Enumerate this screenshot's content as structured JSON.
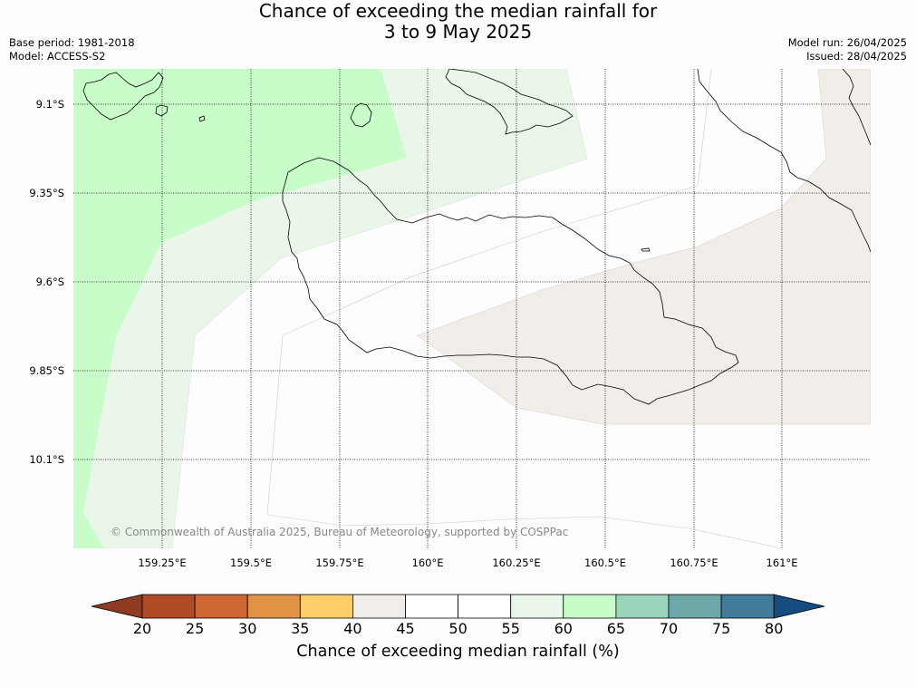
{
  "title_line1": "Chance of exceeding the median rainfall for",
  "title_line2": "3 to 9 May 2025",
  "base_period": "Base period: 1981-2018",
  "model": "Model: ACCESS-S2",
  "model_run": "Model run: 26/04/2025",
  "issued": "Issued: 28/04/2025",
  "copyright": "© Commonwealth of Australia 2025, Bureau of Meteorology, supported by COSPPac",
  "lat_labels": [
    "9.1°S",
    "9.35°S",
    "9.6°S",
    "9.85°S",
    "10.1°S"
  ],
  "lon_labels": [
    "159.25°E",
    "159.5°E",
    "159.75°E",
    "160°E",
    "160.25°E",
    "160.5°E",
    "160.75°E",
    "161°E"
  ],
  "colorbar": {
    "title": "Chance of exceeding median rainfall (%)",
    "ticks": [
      "20",
      "25",
      "30",
      "35",
      "40",
      "45",
      "50",
      "55",
      "60",
      "65",
      "70",
      "75",
      "80"
    ],
    "colors": [
      "#8f3a22",
      "#b24a28",
      "#cf6535",
      "#e19245",
      "#fecf69",
      "#f1ede8",
      "#ffffff",
      "#ffffff",
      "#ebf6eb",
      "#c8fdca",
      "#9cd3bb",
      "#6fa8a8",
      "#417b9a",
      "#154c81"
    ]
  },
  "forecast_zones": [
    {
      "name": "60-65%",
      "color": "#c8fdca"
    },
    {
      "name": "55-60%",
      "color": "#ebf6eb"
    },
    {
      "name": "40-45%",
      "color": "#f1ede8"
    }
  ]
}
